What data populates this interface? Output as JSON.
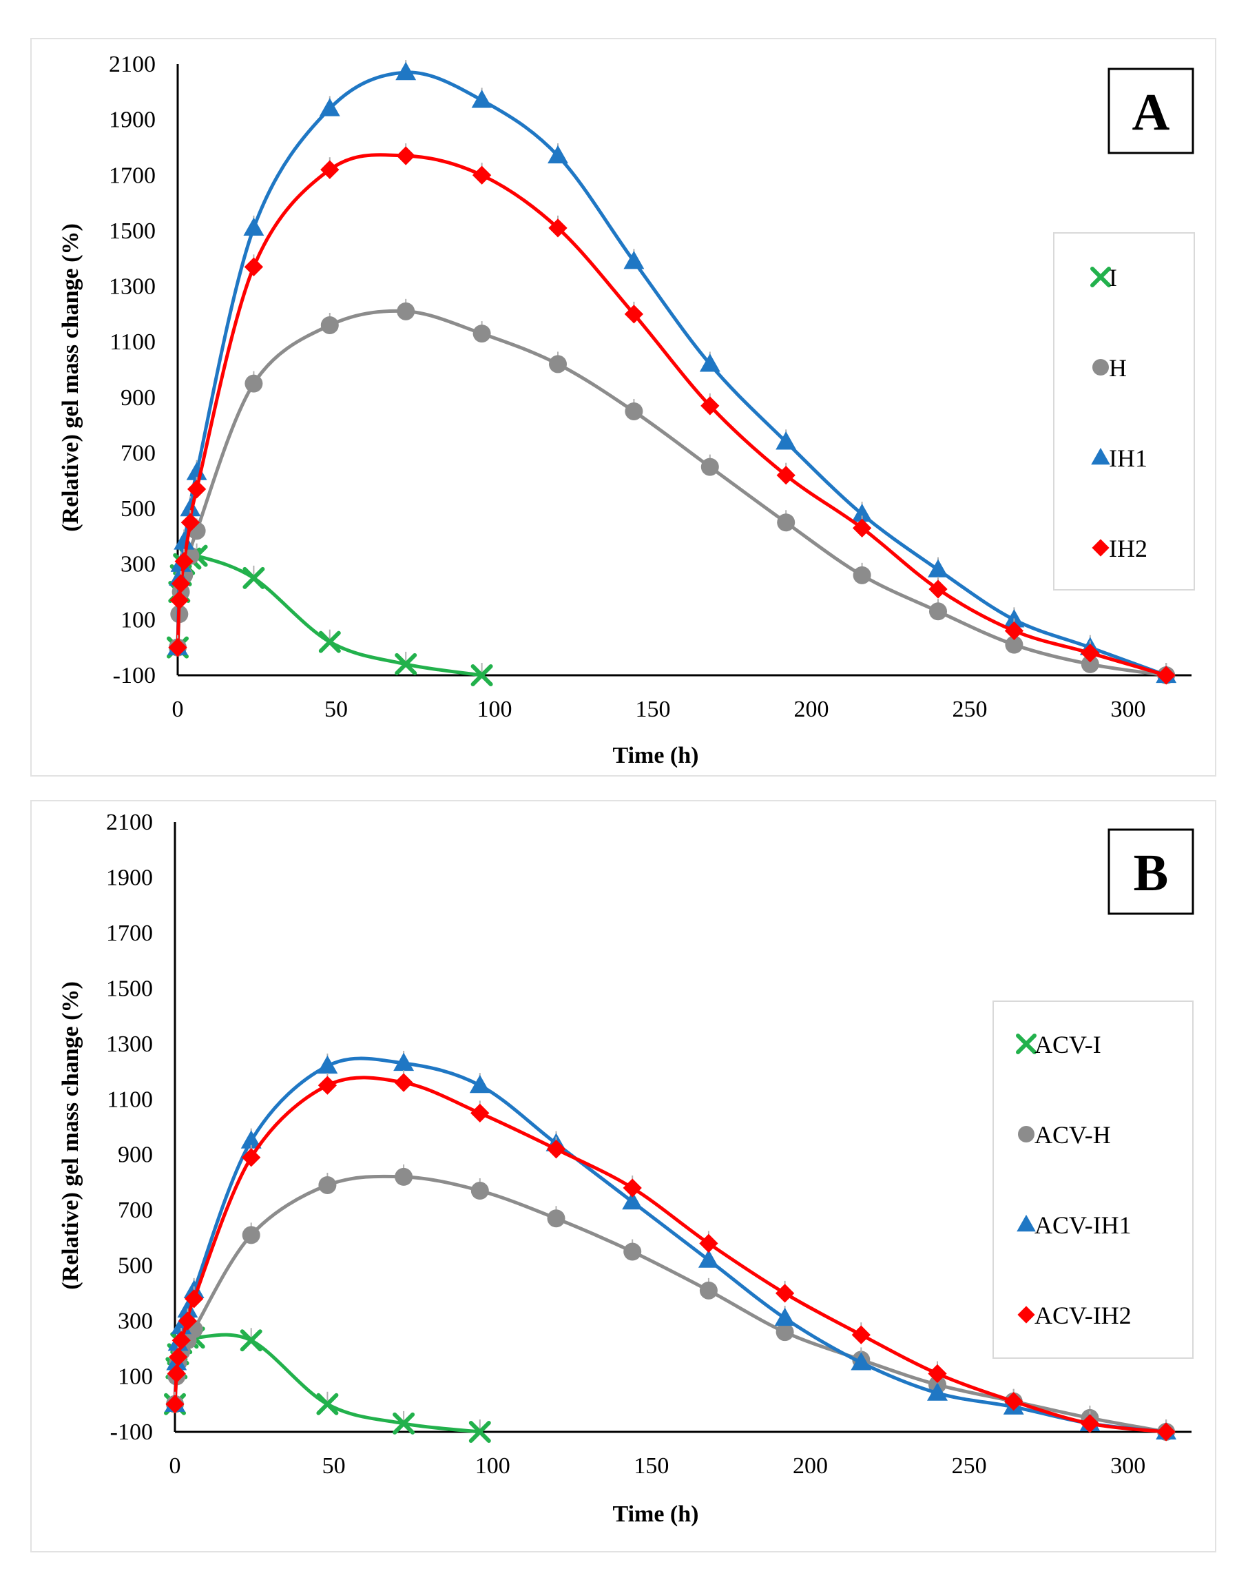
{
  "chart_data": [
    {
      "type": "line",
      "panel_label": "A",
      "xlabel": "Time (h)",
      "ylabel": "(Relative) gel mass change (%)",
      "xlim": [
        0,
        320
      ],
      "ylim": [
        -100,
        2100
      ],
      "xticks": [
        0,
        50,
        100,
        150,
        200,
        250,
        300
      ],
      "yticks": [
        -100,
        100,
        300,
        500,
        700,
        900,
        1100,
        1300,
        1500,
        1700,
        1900,
        2100
      ],
      "legend_position": "right",
      "series": [
        {
          "name": "I",
          "color": "#22b14c",
          "marker": "cross",
          "x": [
            0,
            0.5,
            1,
            2,
            4,
            6,
            24,
            48,
            72,
            96
          ],
          "values": [
            0,
            200,
            260,
            300,
            320,
            330,
            250,
            20,
            -60,
            -100
          ]
        },
        {
          "name": "H",
          "color": "#8c8c8c",
          "marker": "circle",
          "x": [
            0,
            0.5,
            1,
            2,
            4,
            6,
            24,
            48,
            72,
            96,
            120,
            144,
            168,
            192,
            216,
            240,
            264,
            288,
            312
          ],
          "values": [
            0,
            120,
            200,
            260,
            330,
            420,
            950,
            1160,
            1210,
            1130,
            1020,
            850,
            650,
            450,
            260,
            130,
            10,
            -60,
            -100
          ]
        },
        {
          "name": "IH1",
          "color": "#1f77c4",
          "marker": "triangle",
          "x": [
            0,
            0.5,
            1,
            2,
            4,
            6,
            24,
            48,
            72,
            96,
            120,
            144,
            168,
            192,
            216,
            240,
            264,
            288,
            312
          ],
          "values": [
            0,
            250,
            300,
            380,
            500,
            630,
            1510,
            1940,
            2070,
            1970,
            1770,
            1390,
            1020,
            740,
            480,
            280,
            100,
            0,
            -100
          ]
        },
        {
          "name": "IH2",
          "color": "#ff0000",
          "marker": "diamond",
          "x": [
            0,
            0.5,
            1,
            2,
            4,
            6,
            24,
            48,
            72,
            96,
            120,
            144,
            168,
            192,
            216,
            240,
            264,
            288,
            312
          ],
          "values": [
            0,
            170,
            230,
            310,
            450,
            570,
            1370,
            1720,
            1770,
            1700,
            1510,
            1200,
            870,
            620,
            430,
            210,
            60,
            -20,
            -100
          ]
        }
      ]
    },
    {
      "type": "line",
      "panel_label": "B",
      "xlabel": "Time (h)",
      "ylabel": "(Relative) gel mass change (%)",
      "xlim": [
        0,
        320
      ],
      "ylim": [
        -100,
        2100
      ],
      "xticks": [
        0,
        50,
        100,
        150,
        200,
        250,
        300
      ],
      "yticks": [
        -100,
        100,
        300,
        500,
        700,
        900,
        1100,
        1300,
        1500,
        1700,
        1900,
        2100
      ],
      "legend_position": "right",
      "series": [
        {
          "name": "ACV-I",
          "color": "#22b14c",
          "marker": "cross",
          "x": [
            0,
            0.5,
            1,
            2,
            4,
            6,
            24,
            48,
            72,
            96
          ],
          "values": [
            0,
            130,
            180,
            220,
            240,
            240,
            230,
            0,
            -70,
            -100
          ]
        },
        {
          "name": "ACV-H",
          "color": "#8c8c8c",
          "marker": "circle",
          "x": [
            0,
            0.5,
            1,
            2,
            4,
            6,
            24,
            48,
            72,
            96,
            120,
            144,
            168,
            192,
            216,
            240,
            264,
            288,
            312
          ],
          "values": [
            0,
            100,
            150,
            190,
            230,
            270,
            610,
            790,
            820,
            770,
            670,
            550,
            410,
            260,
            160,
            70,
            10,
            -50,
            -100
          ]
        },
        {
          "name": "ACV-IH1",
          "color": "#1f77c4",
          "marker": "triangle",
          "x": [
            0,
            0.5,
            1,
            2,
            4,
            6,
            24,
            48,
            72,
            96,
            120,
            144,
            168,
            192,
            216,
            240,
            264,
            288,
            312
          ],
          "values": [
            0,
            150,
            220,
            280,
            340,
            410,
            950,
            1220,
            1230,
            1150,
            940,
            730,
            520,
            310,
            150,
            40,
            -10,
            -70,
            -100
          ]
        },
        {
          "name": "ACV-IH2",
          "color": "#ff0000",
          "marker": "diamond",
          "x": [
            0,
            0.5,
            1,
            2,
            4,
            6,
            24,
            48,
            72,
            96,
            120,
            144,
            168,
            192,
            216,
            240,
            264,
            288,
            312
          ],
          "values": [
            0,
            110,
            170,
            230,
            300,
            380,
            890,
            1150,
            1160,
            1050,
            920,
            780,
            580,
            400,
            250,
            110,
            10,
            -70,
            -100
          ]
        }
      ]
    }
  ]
}
